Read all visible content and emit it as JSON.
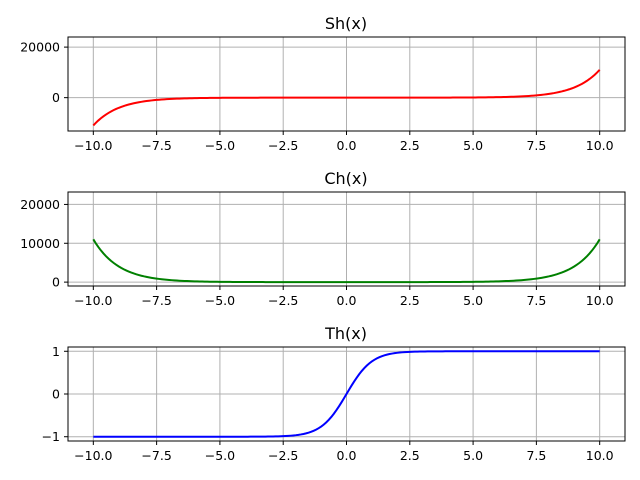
{
  "chart_data": [
    {
      "type": "line",
      "title": "Sh(x)",
      "function": "sinh",
      "color": "#ff0000",
      "x": {
        "min": -10.0,
        "max": 10.0,
        "samples": 201
      },
      "xlim": [
        -11.0,
        11.0
      ],
      "ylim": [
        -13200,
        24000
      ],
      "xticks": [
        -10.0,
        -7.5,
        -5.0,
        -2.5,
        0.0,
        2.5,
        5.0,
        7.5,
        10.0
      ],
      "xtick_labels": [
        "−10.0",
        "−7.5",
        "−5.0",
        "−2.5",
        "0.0",
        "2.5",
        "5.0",
        "7.5",
        "10.0"
      ],
      "yticks": [
        0,
        20000
      ],
      "ytick_labels": [
        "0",
        "20000"
      ],
      "grid": true,
      "xlabel": "",
      "ylabel": ""
    },
    {
      "type": "line",
      "title": "Ch(x)",
      "function": "cosh",
      "color": "#008000",
      "x": {
        "min": -10.0,
        "max": 10.0,
        "samples": 201
      },
      "xlim": [
        -11.0,
        11.0
      ],
      "ylim": [
        -1000,
        23200
      ],
      "xticks": [
        -10.0,
        -7.5,
        -5.0,
        -2.5,
        0.0,
        2.5,
        5.0,
        7.5,
        10.0
      ],
      "xtick_labels": [
        "−10.0",
        "−7.5",
        "−5.0",
        "−2.5",
        "0.0",
        "2.5",
        "5.0",
        "7.5",
        "10.0"
      ],
      "yticks": [
        0,
        10000,
        20000
      ],
      "ytick_labels": [
        "0",
        "10000",
        "20000"
      ],
      "grid": true,
      "xlabel": "",
      "ylabel": ""
    },
    {
      "type": "line",
      "title": "Th(x)",
      "function": "tanh",
      "color": "#0000ff",
      "x": {
        "min": -10.0,
        "max": 10.0,
        "samples": 201
      },
      "xlim": [
        -11.0,
        11.0
      ],
      "ylim": [
        -1.1,
        1.1
      ],
      "xticks": [
        -10.0,
        -7.5,
        -5.0,
        -2.5,
        0.0,
        2.5,
        5.0,
        7.5,
        10.0
      ],
      "xtick_labels": [
        "−10.0",
        "−7.5",
        "−5.0",
        "−2.5",
        "0.0",
        "2.5",
        "5.0",
        "7.5",
        "10.0"
      ],
      "yticks": [
        -1,
        0,
        1
      ],
      "ytick_labels": [
        "−1",
        "0",
        "1"
      ],
      "grid": true,
      "xlabel": "",
      "ylabel": ""
    }
  ]
}
